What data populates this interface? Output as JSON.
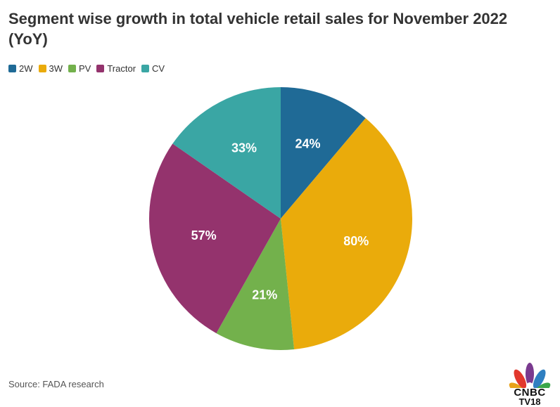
{
  "title": "Segment wise growth in total vehicle retail sales for November 2022 (YoY)",
  "source": "Source: FADA research",
  "logo": {
    "brand": "CNBC",
    "sub": "TV18"
  },
  "colors": {
    "2W": "#1f6a96",
    "3W": "#eaab0b",
    "PV": "#73b14c",
    "Tractor": "#94336d",
    "CV": "#3aa6a4"
  },
  "chart_data": {
    "type": "pie",
    "title": "Segment wise growth in total vehicle retail sales for November 2022 (YoY)",
    "categories": [
      "2W",
      "3W",
      "PV",
      "Tractor",
      "CV"
    ],
    "values": [
      24,
      80,
      21,
      57,
      33
    ],
    "labels": [
      "24%",
      "80%",
      "21%",
      "57%",
      "33%"
    ],
    "legend": "top-left",
    "start": "top",
    "direction": "clockwise"
  }
}
